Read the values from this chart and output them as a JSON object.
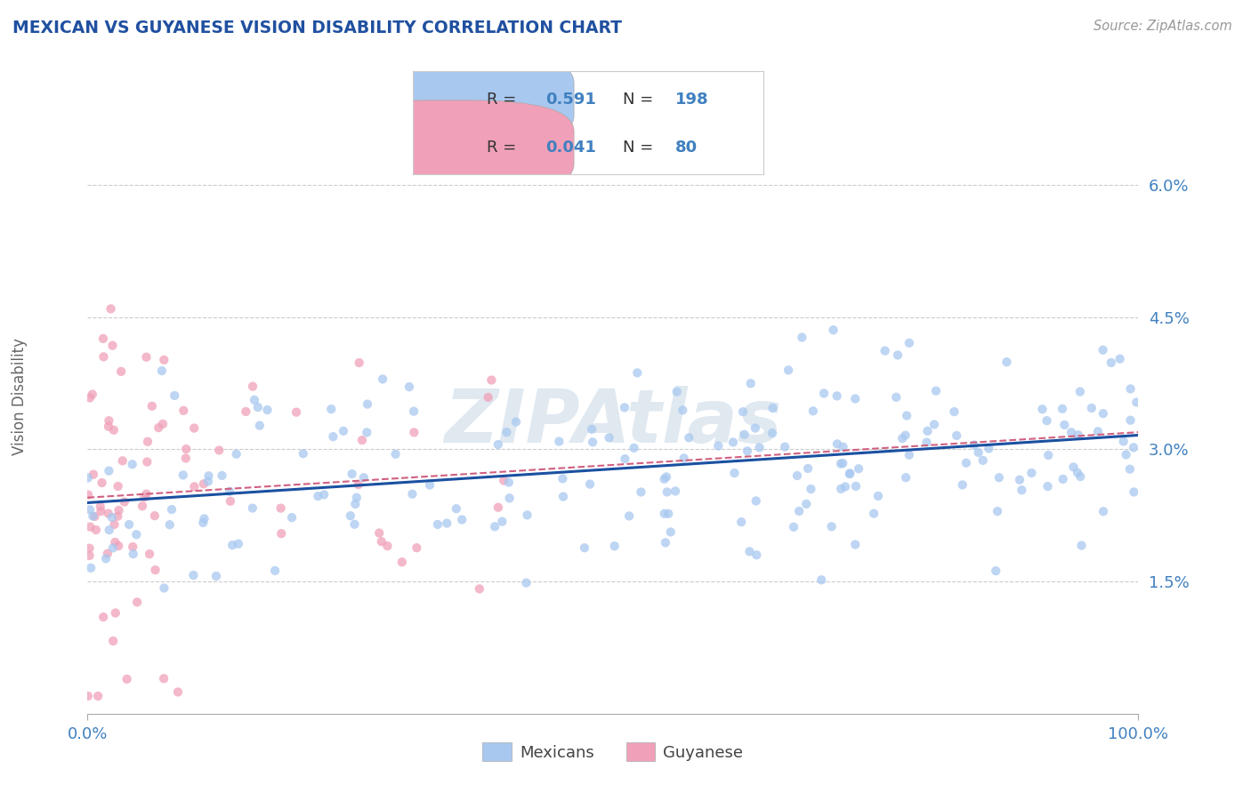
{
  "title": "MEXICAN VS GUYANESE VISION DISABILITY CORRELATION CHART",
  "source": "Source: ZipAtlas.com",
  "ylabel": "Vision Disability",
  "legend_bottom_labels": [
    "Mexicans",
    "Guyanese"
  ],
  "blue_R": 0.591,
  "blue_N": 198,
  "pink_R": 0.041,
  "pink_N": 80,
  "blue_color": "#A8C8F0",
  "pink_color": "#F0A0B8",
  "blue_line_color": "#1A50A0",
  "pink_line_color": "#D06080",
  "title_color": "#2050A0",
  "axis_tick_color": "#4080C0",
  "xlim": [
    0,
    1.0
  ],
  "ylim": [
    0,
    0.072
  ],
  "yticks": [
    0.015,
    0.03,
    0.045,
    0.06
  ],
  "ytick_labels": [
    "1.5%",
    "3.0%",
    "4.5%",
    "6.0%"
  ],
  "xticks": [
    0.0,
    1.0
  ],
  "xtick_labels": [
    "0.0%",
    "100.0%"
  ],
  "background_color": "#FFFFFF",
  "grid_color": "#CCCCCC",
  "watermark": "ZIPAtlas",
  "watermark_color": "#E0E8F0"
}
